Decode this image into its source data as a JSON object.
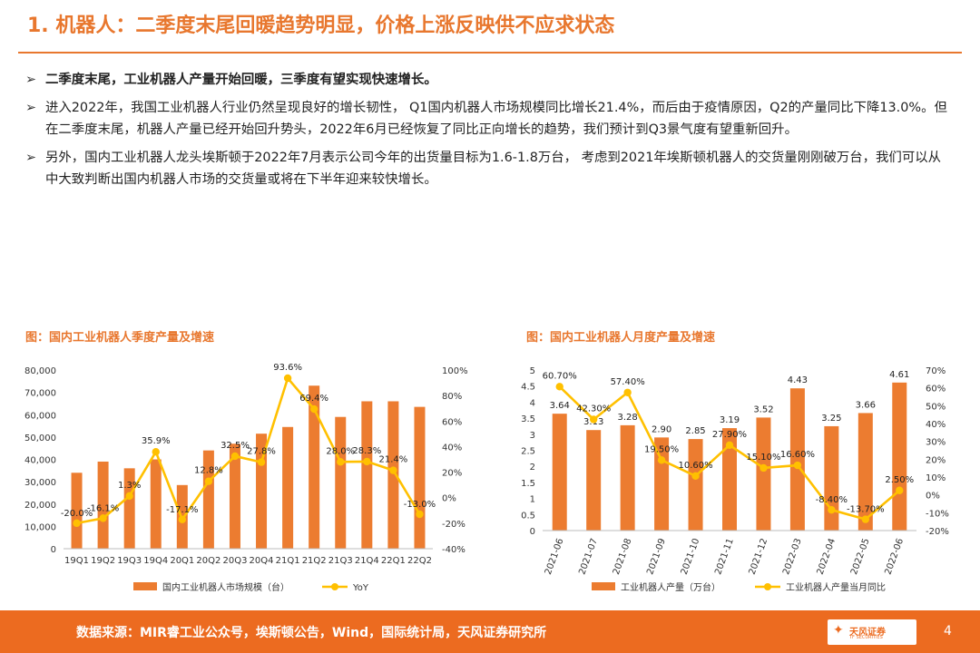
{
  "header": {
    "title": "1. 机器人：二季度末尾回暖趋势明显，价格上涨反映供不应求状态"
  },
  "bullets": [
    {
      "marker": "➢",
      "text": "二季度末尾，工业机器人产量开始回暖，三季度有望实现快速增长。",
      "bold": true
    },
    {
      "marker": "➢",
      "text": "进入2022年，我国工业机器人行业仍然呈现良好的增长韧性， Q1国内机器人市场规模同比增长21.4%，而后由于疫情原因，Q2的产量同比下降13.0%。但在二季度末尾，机器人产量已经开始回升势头，2022年6月已经恢复了同比正向增长的趋势，我们预计到Q3景气度有望重新回升。",
      "bold": false
    },
    {
      "marker": "➢",
      "text": "另外，国内工业机器人龙头埃斯顿于2022年7月表示公司今年的出货量目标为1.6-1.8万台， 考虑到2021年埃斯顿机器人的交货量刚刚破万台，我们可以从中大致判断出国内机器人市场的交货量或将在下半年迎来较快增长。",
      "bold": false
    }
  ],
  "chart_data": [
    {
      "type": "bar",
      "title": "图：国内工业机器人季度产量及增速",
      "categories": [
        "19Q1",
        "19Q2",
        "19Q3",
        "19Q4",
        "20Q1",
        "20Q2",
        "20Q3",
        "20Q4",
        "21Q1",
        "21Q2",
        "21Q3",
        "21Q4",
        "22Q1",
        "22Q2"
      ],
      "series": [
        {
          "name": "国内工业机器人市场规模（台）",
          "kind": "bar",
          "axis": "left",
          "color": "#ec7c30",
          "values": [
            34000,
            39000,
            36000,
            40000,
            28500,
            44000,
            47000,
            51500,
            54500,
            73000,
            59000,
            66000,
            66000,
            63500
          ]
        },
        {
          "name": "YoY",
          "kind": "line",
          "axis": "right",
          "color": "#ffc000",
          "values": [
            -20.0,
            -16.1,
            1.3,
            35.9,
            -17.1,
            12.8,
            32.5,
            27.8,
            93.6,
            69.4,
            28.0,
            28.3,
            21.4,
            -13.0
          ],
          "labels": [
            "-20.0%",
            "-16.1%",
            "1.3%",
            "35.9%",
            "-17.1%",
            "12.8%",
            "32.5%",
            "27.8%",
            "93.6%",
            "69.4%",
            "28.0%",
            "28.3%",
            "21.4%",
            "-13.0%"
          ]
        }
      ],
      "ylim_left": [
        0,
        80000
      ],
      "yticks_left": [
        "0",
        "10,000",
        "20,000",
        "30,000",
        "40,000",
        "50,000",
        "60,000",
        "70,000",
        "80,000"
      ],
      "ylim_right": [
        -40,
        100
      ],
      "yticks_right": [
        "-40%",
        "-20%",
        "0%",
        "20%",
        "40%",
        "60%",
        "80%",
        "100%"
      ],
      "legend_position": "bottom"
    },
    {
      "type": "bar",
      "title": "图：国内工业机器人月度产量及增速",
      "categories": [
        "2021-06",
        "2021-07",
        "2021-08",
        "2021-09",
        "2021-10",
        "2021-11",
        "2021-12",
        "2022-03",
        "2022-04",
        "2022-05",
        "2022-06"
      ],
      "series": [
        {
          "name": "工业机器人产量（万台）",
          "kind": "bar",
          "axis": "left",
          "color": "#ec7c30",
          "values": [
            3.64,
            3.13,
            3.28,
            2.9,
            2.85,
            3.19,
            3.52,
            4.43,
            3.25,
            3.66,
            4.61
          ],
          "labels": [
            "3.64",
            "3.13",
            "3.28",
            "2.90",
            "2.85",
            "3.19",
            "3.52",
            "4.43",
            "3.25",
            "3.66",
            "4.61"
          ]
        },
        {
          "name": "工业机器人产量当月同比",
          "kind": "line",
          "axis": "right",
          "color": "#ffc000",
          "values": [
            60.7,
            42.3,
            57.4,
            19.5,
            10.6,
            27.9,
            15.1,
            16.6,
            -8.4,
            -13.7,
            2.5
          ],
          "labels": [
            "60.70%",
            "42.30%",
            "57.40%",
            "19.50%",
            "10.60%",
            "27.90%",
            "15.10%",
            "16.60%",
            "-8.40%",
            "-13.70%",
            "2.50%"
          ]
        }
      ],
      "ylim_left": [
        0,
        5
      ],
      "yticks_left": [
        "0",
        "0.5",
        "1",
        "1.5",
        "2",
        "2.5",
        "3",
        "3.5",
        "4",
        "4.5",
        "5"
      ],
      "ylim_right": [
        -20,
        70
      ],
      "yticks_right": [
        "-20%",
        "-10%",
        "0%",
        "10%",
        "20%",
        "30%",
        "40%",
        "50%",
        "60%",
        "70%"
      ],
      "legend_position": "bottom"
    }
  ],
  "footer": {
    "source": "数据来源：MIR睿工业公众号，埃斯顿公告，Wind，国际统计局，天风证券研究所",
    "logo_mark": "✦",
    "logo_text": "天风证券",
    "logo_sub": "TF SECURITIES",
    "page": "4"
  }
}
